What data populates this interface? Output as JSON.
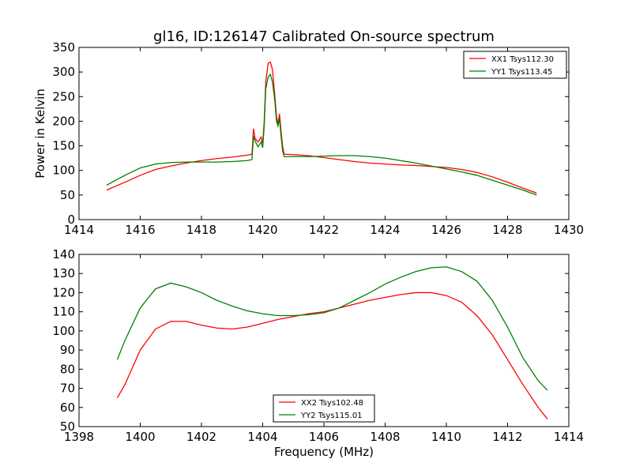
{
  "figure_title": "gl16, ID:126147 Calibrated On-source spectrum",
  "colors": {
    "red": "#ff0000",
    "green": "#008000"
  },
  "chart_data": [
    {
      "type": "line",
      "title": "gl16, ID:126147 Calibrated On-source spectrum",
      "xlabel": "",
      "ylabel": "Power in Kelvin",
      "xlim": [
        1414,
        1430
      ],
      "ylim": [
        0,
        350
      ],
      "xticks": [
        1414,
        1416,
        1418,
        1420,
        1422,
        1424,
        1426,
        1428,
        1430
      ],
      "yticks": [
        0,
        50,
        100,
        150,
        200,
        250,
        300,
        350
      ],
      "grid": false,
      "legend_position": "top-right",
      "series": [
        {
          "name": "XX1 Tsys112.30",
          "color": "#ff0000",
          "x": [
            1414.9,
            1415.5,
            1416.0,
            1416.5,
            1417.0,
            1417.5,
            1418.0,
            1418.5,
            1419.0,
            1419.5,
            1419.65,
            1419.7,
            1419.75,
            1419.85,
            1419.95,
            1420.0,
            1420.05,
            1420.1,
            1420.18,
            1420.25,
            1420.32,
            1420.4,
            1420.45,
            1420.5,
            1420.55,
            1420.6,
            1420.65,
            1420.7,
            1421.0,
            1421.5,
            1422.0,
            1422.5,
            1423.0,
            1423.5,
            1424.0,
            1424.5,
            1425.0,
            1425.5,
            1426.0,
            1426.5,
            1427.0,
            1427.5,
            1428.0,
            1428.5,
            1428.95
          ],
          "y": [
            60,
            76,
            90,
            102,
            109,
            115,
            120,
            124,
            127,
            131,
            133,
            185,
            165,
            158,
            168,
            155,
            200,
            280,
            318,
            320,
            305,
            250,
            210,
            195,
            215,
            180,
            150,
            133,
            132,
            130,
            126,
            122,
            118,
            115,
            113,
            111,
            110,
            108,
            106,
            102,
            96,
            87,
            76,
            64,
            54
          ]
        },
        {
          "name": "YY1 Tsys113.45",
          "color": "#008000",
          "x": [
            1414.9,
            1415.5,
            1416.0,
            1416.5,
            1417.0,
            1417.5,
            1418.0,
            1418.5,
            1419.0,
            1419.5,
            1419.65,
            1419.7,
            1419.75,
            1419.85,
            1419.95,
            1420.0,
            1420.05,
            1420.1,
            1420.18,
            1420.25,
            1420.32,
            1420.4,
            1420.45,
            1420.5,
            1420.55,
            1420.6,
            1420.65,
            1420.7,
            1421.0,
            1421.5,
            1422.0,
            1422.5,
            1423.0,
            1423.5,
            1424.0,
            1424.5,
            1425.0,
            1425.5,
            1426.0,
            1426.5,
            1427.0,
            1427.5,
            1428.0,
            1428.5,
            1428.95
          ],
          "y": [
            70,
            90,
            105,
            113,
            116,
            117,
            117,
            117,
            118,
            120,
            122,
            170,
            160,
            148,
            158,
            146,
            190,
            265,
            290,
            295,
            280,
            240,
            200,
            190,
            205,
            170,
            140,
            128,
            128,
            128,
            129,
            130,
            130,
            128,
            125,
            120,
            115,
            109,
            103,
            97,
            90,
            80,
            70,
            60,
            50
          ]
        }
      ]
    },
    {
      "type": "line",
      "title": "",
      "xlabel": "Frequency (MHz)",
      "ylabel": "",
      "xlim": [
        1398,
        1414
      ],
      "ylim": [
        50,
        140
      ],
      "xticks": [
        1398,
        1400,
        1402,
        1404,
        1406,
        1408,
        1410,
        1412,
        1414
      ],
      "yticks": [
        50,
        60,
        70,
        80,
        90,
        100,
        110,
        120,
        130,
        140
      ],
      "grid": false,
      "legend_position": "bottom-center",
      "series": [
        {
          "name": "XX2 Tsys102.48",
          "color": "#ff0000",
          "x": [
            1399.25,
            1399.5,
            1400.0,
            1400.5,
            1401.0,
            1401.5,
            1402.0,
            1402.5,
            1403.0,
            1403.5,
            1404.0,
            1404.5,
            1405.0,
            1405.5,
            1406.0,
            1406.5,
            1407.0,
            1407.5,
            1408.0,
            1408.5,
            1409.0,
            1409.5,
            1410.0,
            1410.5,
            1411.0,
            1411.5,
            1412.0,
            1412.5,
            1413.0,
            1413.3
          ],
          "y": [
            65,
            72,
            90,
            101,
            105,
            105,
            103,
            101.5,
            101,
            102,
            104,
            106,
            107.5,
            109,
            110,
            112,
            114,
            116,
            117.5,
            119,
            120,
            120,
            118.5,
            115,
            108,
            98,
            85,
            72,
            60,
            54
          ]
        },
        {
          "name": "YY2 Tsys115.01",
          "color": "#008000",
          "x": [
            1399.25,
            1399.5,
            1400.0,
            1400.5,
            1401.0,
            1401.5,
            1402.0,
            1402.5,
            1403.0,
            1403.5,
            1404.0,
            1404.5,
            1405.0,
            1405.5,
            1406.0,
            1406.5,
            1407.0,
            1407.5,
            1408.0,
            1408.5,
            1409.0,
            1409.5,
            1410.0,
            1410.5,
            1411.0,
            1411.5,
            1412.0,
            1412.5,
            1413.0,
            1413.3
          ],
          "y": [
            85,
            95,
            112,
            122,
            125,
            123,
            120,
            116,
            113,
            110.5,
            109,
            108,
            108,
            108.5,
            109.5,
            112,
            116,
            120,
            124.5,
            128,
            131,
            133,
            133.5,
            131,
            126,
            116,
            102,
            86,
            74,
            69
          ]
        }
      ]
    }
  ]
}
